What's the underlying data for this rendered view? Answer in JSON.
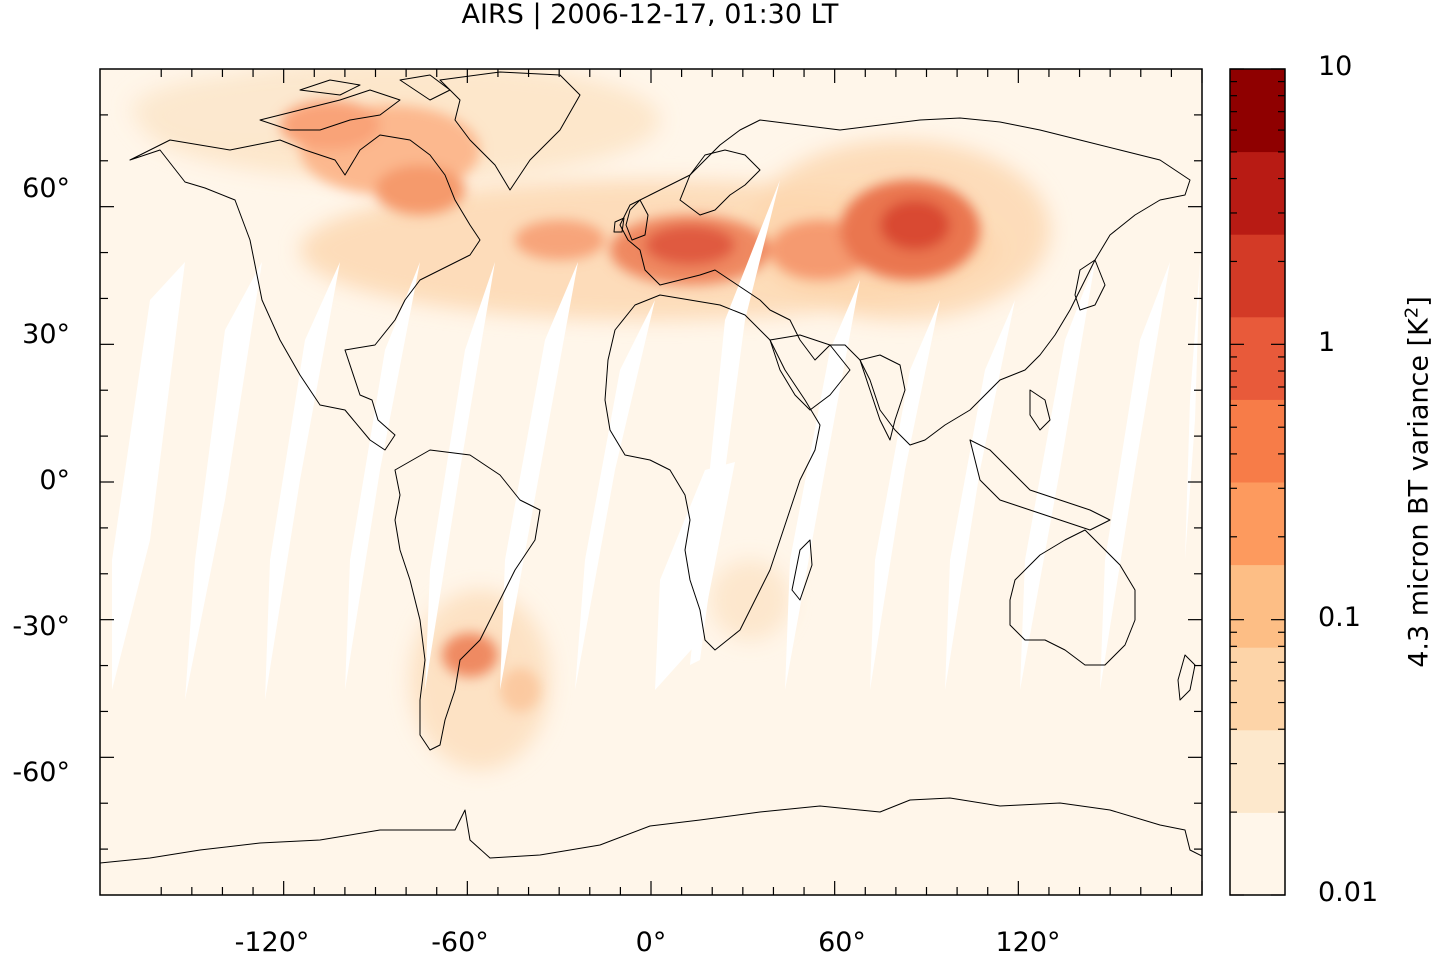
{
  "title": "AIRS | 2006-12-17, 01:30 LT",
  "lat_ticks": [
    "60°",
    "30°",
    "0°",
    "-30°",
    "-60°"
  ],
  "lon_ticks": [
    "-120°",
    "-60°",
    "0°",
    "60°",
    "120°"
  ],
  "colorbar": {
    "label_main": "4.3 micron BT variance [K",
    "label_sup": "2",
    "label_end": "]",
    "tick_labels": [
      "10",
      "1",
      "0.1",
      "0.01"
    ],
    "scale": "log",
    "range": [
      0.01,
      10
    ],
    "colors": [
      "#fff6ea",
      "#fde8cc",
      "#fdd4a8",
      "#fdbe85",
      "#fd9a5e",
      "#f77c48",
      "#e85a3a",
      "#d33a26",
      "#b81b14",
      "#8f0000"
    ]
  },
  "map": {
    "projection": "plate-carree",
    "lon_range": [
      -180,
      180
    ],
    "lat_range": [
      -90,
      90
    ],
    "background_color": "#fff6ea"
  }
}
